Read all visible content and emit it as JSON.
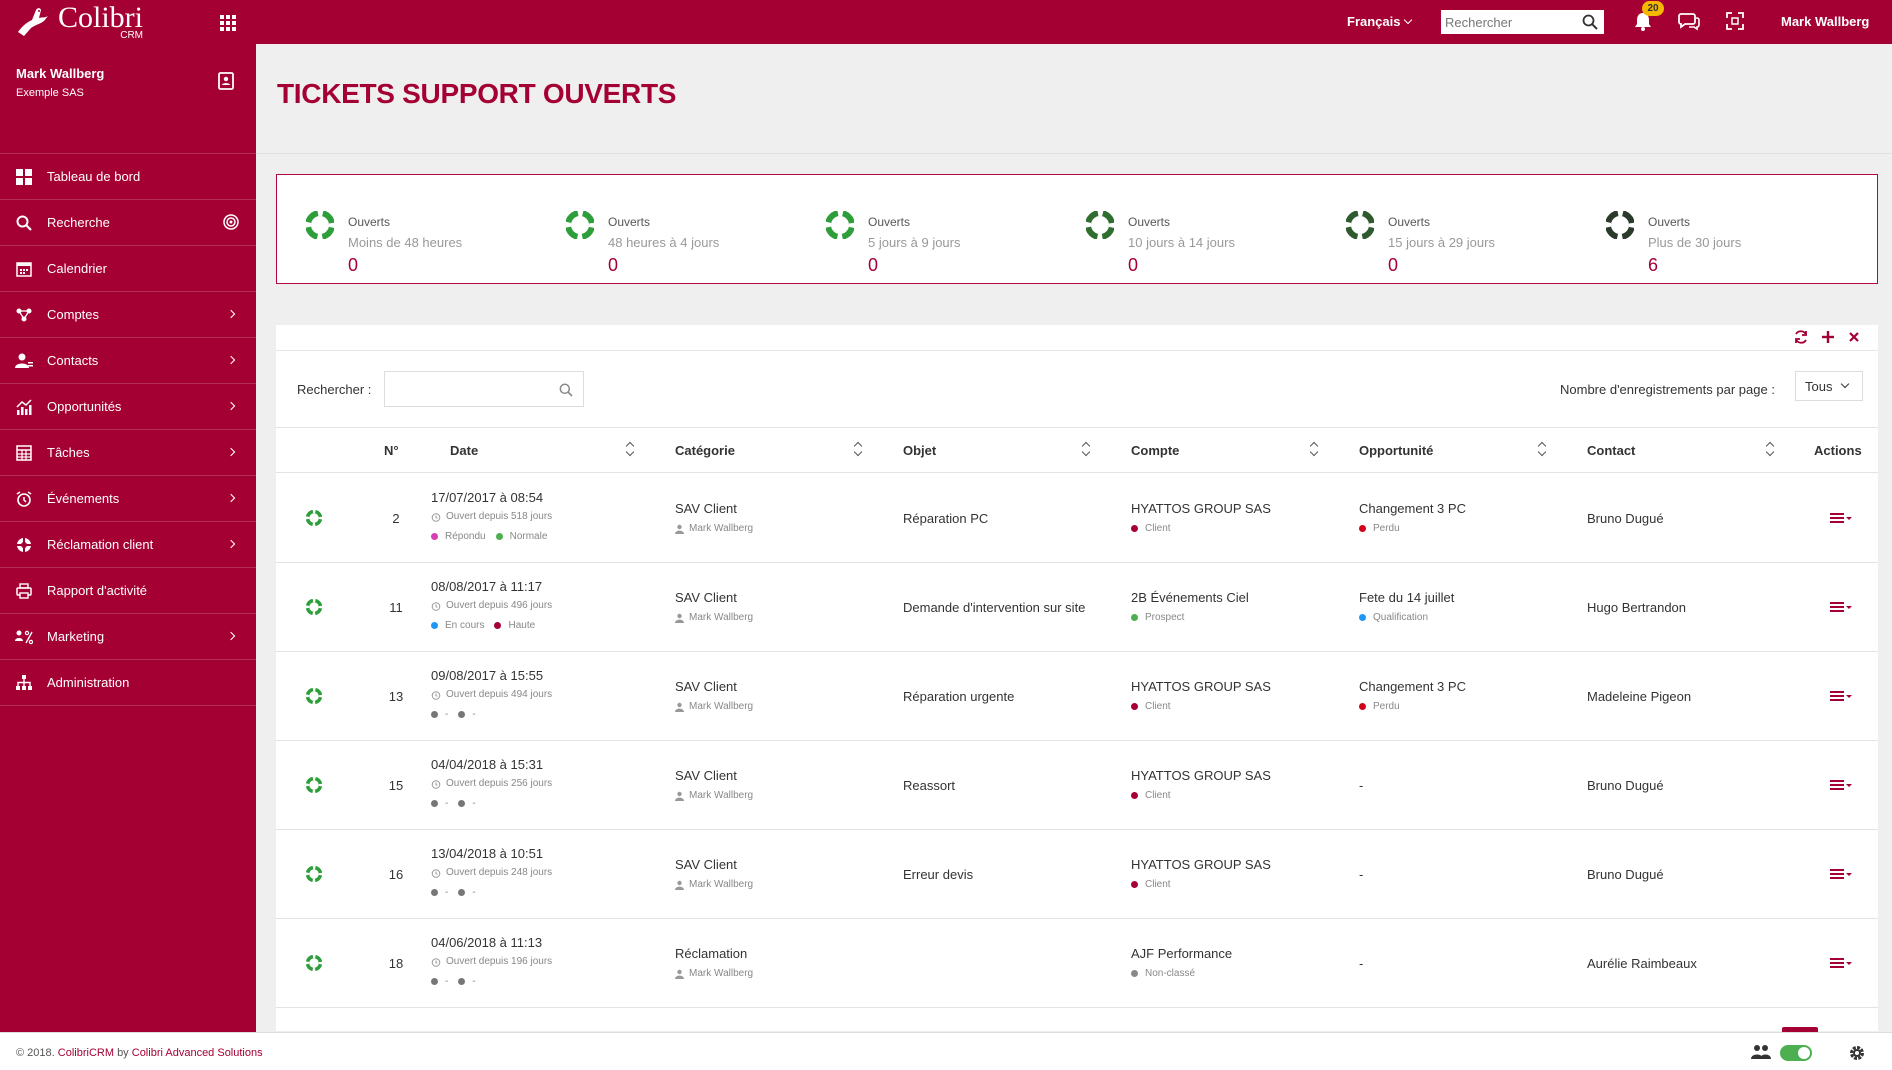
{
  "app": {
    "logo_title": "Colibri",
    "logo_subtitle": "CRM"
  },
  "topbar": {
    "language": "Français",
    "search_placeholder": "Rechercher",
    "notifications_count": "20",
    "user_name": "Mark Wallberg"
  },
  "sidebar": {
    "profile_name": "Mark Wallberg",
    "profile_company": "Exemple SAS",
    "items": [
      {
        "label": "Tableau de bord",
        "icon": "dashboard-icon",
        "has_children": false
      },
      {
        "label": "Recherche",
        "icon": "search-icon",
        "has_children": false
      },
      {
        "label": "Calendrier",
        "icon": "calendar-icon",
        "has_children": false
      },
      {
        "label": "Comptes",
        "icon": "accounts-icon",
        "has_children": true
      },
      {
        "label": "Contacts",
        "icon": "contacts-icon",
        "has_children": true
      },
      {
        "label": "Opportunités",
        "icon": "chart-icon",
        "has_children": true
      },
      {
        "label": "Tâches",
        "icon": "tasks-icon",
        "has_children": true
      },
      {
        "label": "Événements",
        "icon": "alarm-icon",
        "has_children": true
      },
      {
        "label": "Réclamation client",
        "icon": "lifebuoy-icon",
        "has_children": true
      },
      {
        "label": "Rapport d'activité",
        "icon": "printer-icon",
        "has_children": false
      },
      {
        "label": "Marketing",
        "icon": "marketing-icon",
        "has_children": true
      },
      {
        "label": "Administration",
        "icon": "hierarchy-icon",
        "has_children": false
      }
    ]
  },
  "page": {
    "title": "TICKETS SUPPORT OUVERTS"
  },
  "summary": [
    {
      "label": "Ouverts",
      "range": "Moins de 48 heures",
      "count": "0",
      "color": "#2e9e3a"
    },
    {
      "label": "Ouverts",
      "range": "48 heures à 4 jours",
      "count": "0",
      "color": "#2e9e3a"
    },
    {
      "label": "Ouverts",
      "range": "5 jours à 9 jours",
      "count": "0",
      "color": "#2e9e3a"
    },
    {
      "label": "Ouverts",
      "range": "10 jours à 14 jours",
      "count": "0",
      "color": "#2f6e2e"
    },
    {
      "label": "Ouverts",
      "range": "15 jours à 29 jours",
      "count": "0",
      "color": "#2f5a2e"
    },
    {
      "label": "Ouverts",
      "range": "Plus de 30 jours",
      "count": "6",
      "color": "#2b3a2b"
    }
  ],
  "table": {
    "search_label": "Rechercher :",
    "perpage_label": "Nombre d'enregistrements par page :",
    "perpage_value": "Tous",
    "columns": {
      "num": "N°",
      "date": "Date",
      "category": "Catégorie",
      "object": "Objet",
      "account": "Compte",
      "opportunity": "Opportunité",
      "contact": "Contact",
      "actions": "Actions"
    },
    "rows": [
      {
        "num": "2",
        "date": "17/07/2017 à 08:54",
        "open_since": "Ouvert depuis 518 jours",
        "status": "Répondu",
        "status_color": "#d63fb0",
        "priority": "Normale",
        "priority_color": "#4caf50",
        "category": "SAV Client",
        "owner": "Mark Wallberg",
        "object": "Réparation PC",
        "account": "HYATTOS GROUP SAS",
        "account_type": "Client",
        "account_color": "#a50034",
        "opportunity": "Changement 3 PC",
        "opportunity_status": "Perdu",
        "opportunity_color": "#d0021b",
        "contact": "Bruno Dugué"
      },
      {
        "num": "11",
        "date": "08/08/2017 à 11:17",
        "open_since": "Ouvert depuis 496 jours",
        "status": "En cours",
        "status_color": "#2196f3",
        "priority": "Haute",
        "priority_color": "#a50034",
        "category": "SAV Client",
        "owner": "Mark Wallberg",
        "object": "Demande d'intervention sur site",
        "account": "2B Événements Ciel",
        "account_type": "Prospect",
        "account_color": "#4caf50",
        "opportunity": "Fete du 14 juillet",
        "opportunity_status": "Qualification",
        "opportunity_color": "#2196f3",
        "contact": "Hugo Bertrandon"
      },
      {
        "num": "13",
        "date": "09/08/2017 à 15:55",
        "open_since": "Ouvert depuis 494 jours",
        "status": "-",
        "status_color": "#777777",
        "priority": "-",
        "priority_color": "#777777",
        "category": "SAV Client",
        "owner": "Mark Wallberg",
        "object": "Réparation urgente",
        "account": "HYATTOS GROUP SAS",
        "account_type": "Client",
        "account_color": "#a50034",
        "opportunity": "Changement 3 PC",
        "opportunity_status": "Perdu",
        "opportunity_color": "#d0021b",
        "contact": "Madeleine Pigeon"
      },
      {
        "num": "15",
        "date": "04/04/2018 à 15:31",
        "open_since": "Ouvert depuis 256 jours",
        "status": "-",
        "status_color": "#777777",
        "priority": "-",
        "priority_color": "#777777",
        "category": "SAV Client",
        "owner": "Mark Wallberg",
        "object": "Reassort",
        "account": "HYATTOS GROUP SAS",
        "account_type": "Client",
        "account_color": "#a50034",
        "opportunity": "-",
        "opportunity_status": "",
        "opportunity_color": "",
        "contact": "Bruno Dugué"
      },
      {
        "num": "16",
        "date": "13/04/2018 à 10:51",
        "open_since": "Ouvert depuis 248 jours",
        "status": "-",
        "status_color": "#777777",
        "priority": "-",
        "priority_color": "#777777",
        "category": "SAV Client",
        "owner": "Mark Wallberg",
        "object": "Erreur devis",
        "account": "HYATTOS GROUP SAS",
        "account_type": "Client",
        "account_color": "#a50034",
        "opportunity": "-",
        "opportunity_status": "",
        "opportunity_color": "",
        "contact": "Bruno Dugué"
      },
      {
        "num": "18",
        "date": "04/06/2018 à 11:13",
        "open_since": "Ouvert depuis 196 jours",
        "status": "-",
        "status_color": "#777777",
        "priority": "-",
        "priority_color": "#777777",
        "category": "Réclamation",
        "owner": "Mark Wallberg",
        "object": "",
        "account": "AJF Performance",
        "account_type": "Non-classé",
        "account_color": "#888888",
        "opportunity": "-",
        "opportunity_status": "",
        "opportunity_color": "",
        "contact": "Aurélie Raimbeaux"
      }
    ]
  },
  "footer": {
    "copyright": "© 2018.",
    "brand": "ColibriCRM",
    "by": "by",
    "company": "Colibri Advanced Solutions"
  },
  "colors": {
    "brand": "#a50034",
    "ticket_icon": "#2e9e3a"
  }
}
